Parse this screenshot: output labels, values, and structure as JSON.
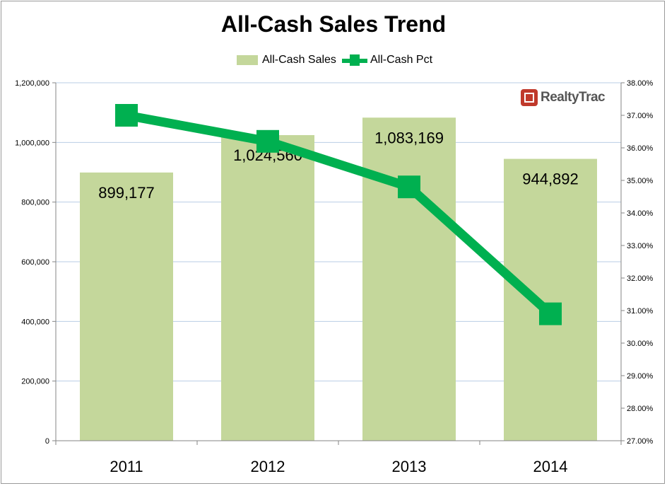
{
  "chart_data": {
    "type": "bar",
    "title": "All-Cash Sales Trend",
    "categories": [
      "2011",
      "2012",
      "2013",
      "2014"
    ],
    "series": [
      {
        "name": "All-Cash Sales",
        "type": "bar",
        "axis": "left",
        "values": [
          899177,
          1024560,
          1083169,
          944892
        ],
        "labels": [
          "899,177",
          "1,024,560",
          "1,083,169",
          "944,892"
        ],
        "color": "#c4d79b"
      },
      {
        "name": "All-Cash Pct",
        "type": "line",
        "axis": "right",
        "values": [
          37.0,
          36.2,
          34.8,
          30.9
        ],
        "color": "#00b050"
      }
    ],
    "y_left": {
      "min": 0,
      "max": 1200000,
      "step": 200000,
      "tick_labels": [
        "0",
        "200,000",
        "400,000",
        "600,000",
        "800,000",
        "1,000,000",
        "1,200,000"
      ]
    },
    "y_right": {
      "min": 27,
      "max": 38,
      "step": 1,
      "tick_labels": [
        "27.00%",
        "28.00%",
        "29.00%",
        "30.00%",
        "31.00%",
        "32.00%",
        "33.00%",
        "34.00%",
        "35.00%",
        "36.00%",
        "37.00%",
        "38.00%"
      ]
    },
    "grid": true,
    "legend_position": "top-center",
    "xlabel": "",
    "ylabel": ""
  },
  "logo": {
    "text_a": "Realty",
    "text_b": "Trac",
    "mark": "house-icon"
  }
}
